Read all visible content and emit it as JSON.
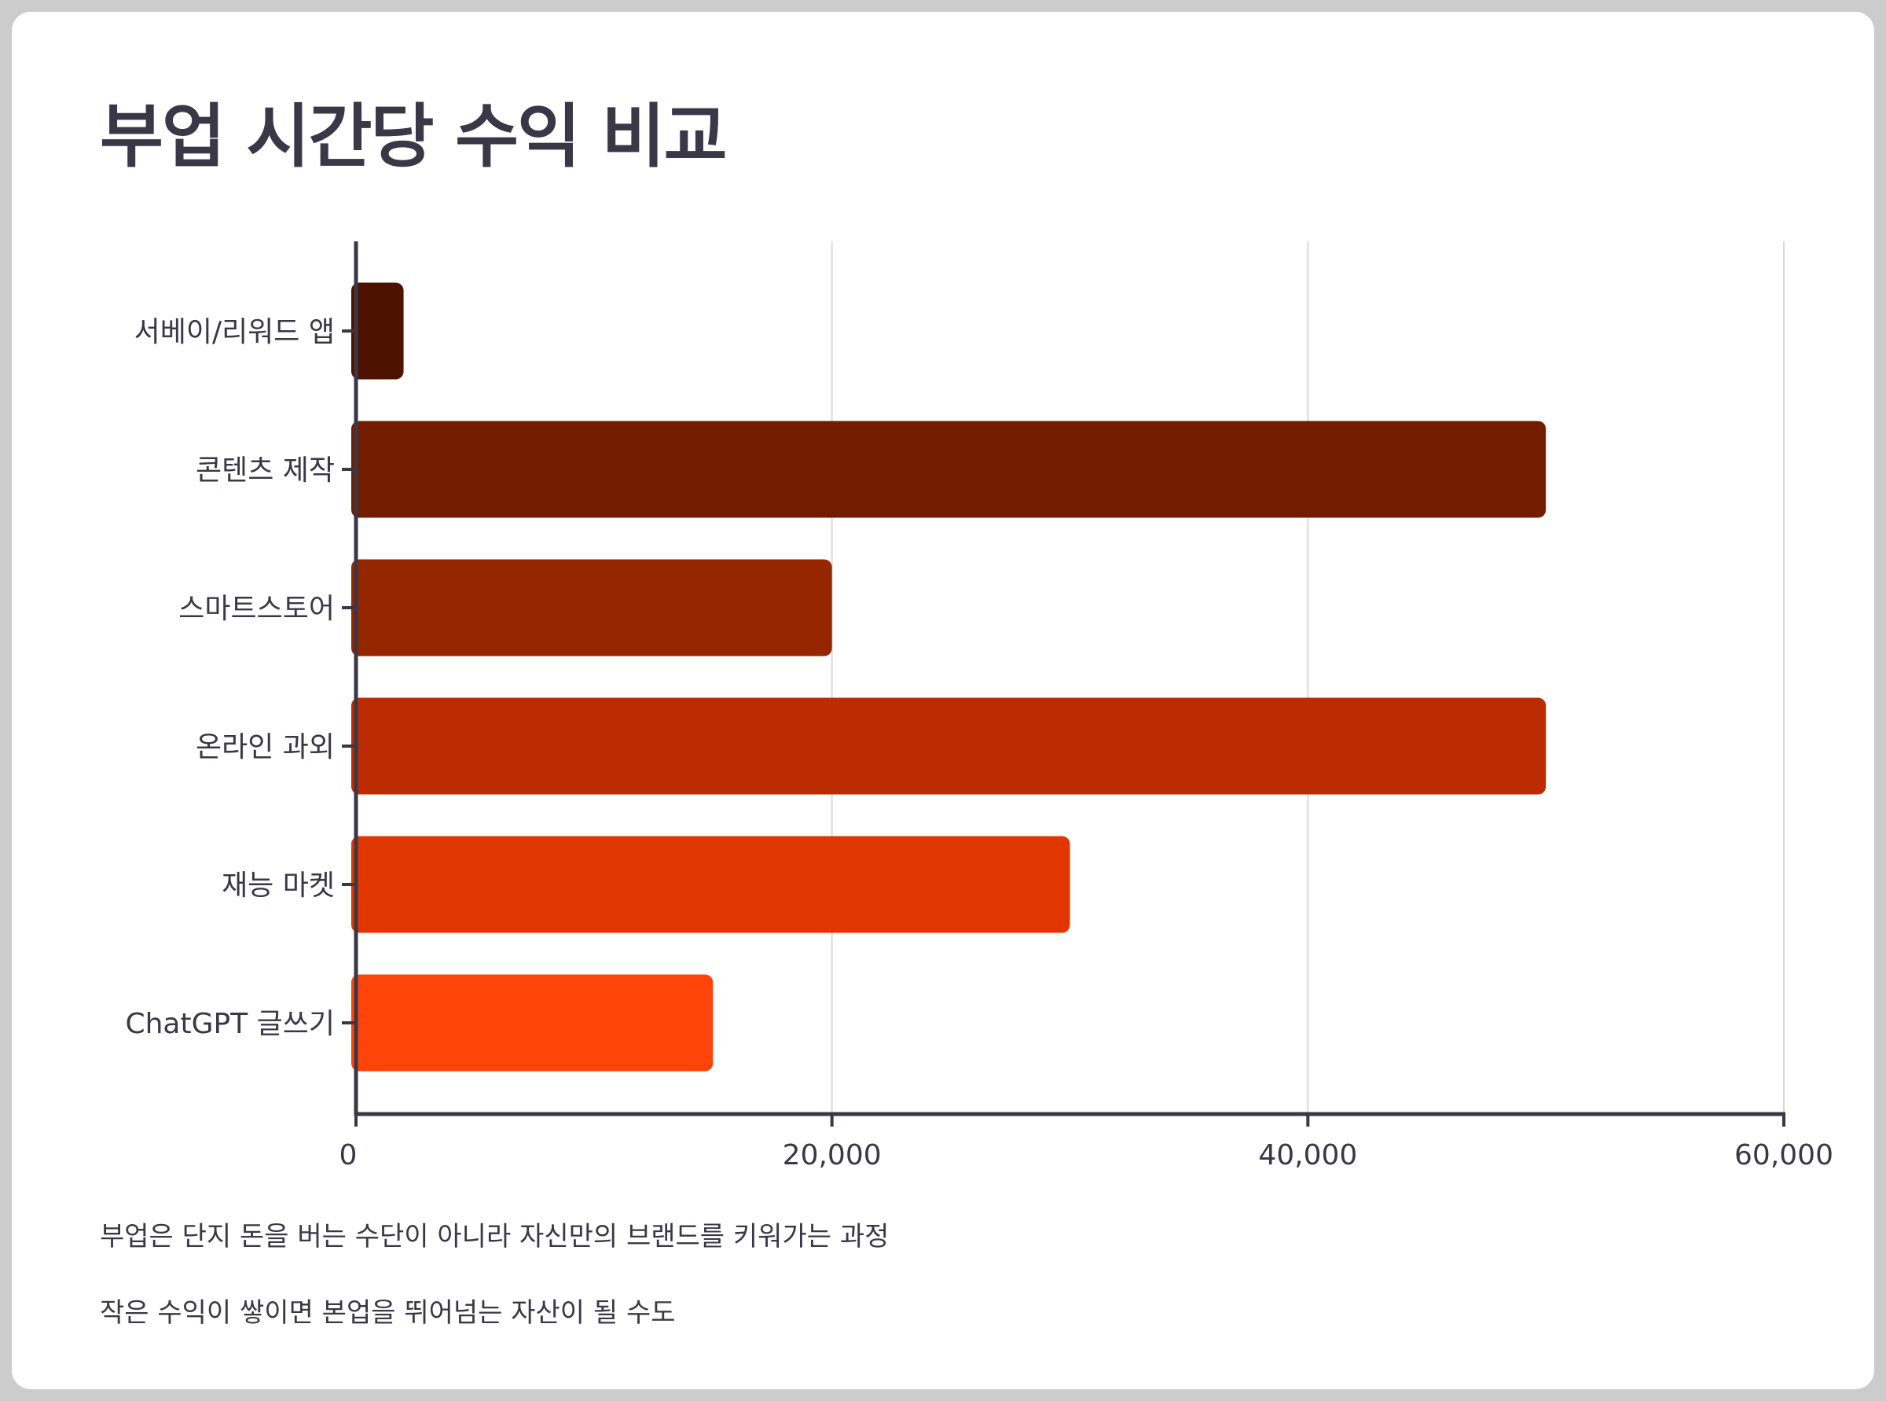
{
  "title": "부업 시간당 수익 비교",
  "chart_data": {
    "type": "bar",
    "orientation": "horizontal",
    "title": "부업 시간당 수익 비교",
    "xlabel": "",
    "ylabel": "",
    "xlim": [
      0,
      60000
    ],
    "xticks": [
      0,
      20000,
      40000,
      60000
    ],
    "xtick_labels": [
      "0",
      "20,000",
      "40,000",
      "60,000"
    ],
    "grid": "vertical",
    "categories": [
      "서베이/리워드 앱",
      "콘텐츠 제작",
      "스마트스토어",
      "온라인 과외",
      "재능 마켓",
      "ChatGPT 글쓰기"
    ],
    "values": [
      2000,
      50000,
      20000,
      50000,
      30000,
      15000
    ],
    "colors": [
      "#4e1300",
      "#731d00",
      "#962600",
      "#bc2c00",
      "#e23600",
      "#ff4409"
    ]
  },
  "notes": [
    "부업은 단지 돈을 버는 수단이 아니라 자신만의 브랜드를 키워가는 과정",
    "작은 수익이 쌓이면 본업을 뛰어넘는 자산이 될 수도"
  ]
}
